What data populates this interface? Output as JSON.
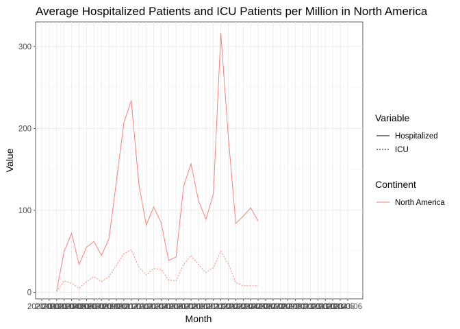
{
  "chart_data": {
    "type": "line",
    "title": "Average Hospitalized Patients and ICU Patients per Million in North America",
    "xlabel": "Month",
    "ylabel": "Value",
    "ylim": [
      -8,
      330
    ],
    "yticks": [
      0,
      100,
      200,
      300
    ],
    "x_tick_labels": [
      "2020-01",
      "2020-02",
      "2020-03",
      "2020-04",
      "2020-05",
      "2020-06",
      "2020-07",
      "2020-08",
      "2020-09",
      "2020-10",
      "2020-11",
      "2020-12",
      "2021-01",
      "2021-02",
      "2021-03",
      "2021-04",
      "2021-05",
      "2021-06",
      "2021-07",
      "2021-08",
      "2021-09",
      "2021-10",
      "2021-11",
      "2021-12",
      "2022-01",
      "2022-02",
      "2022-03",
      "2022-04",
      "2022-05",
      "2022-06",
      "2022-07",
      "2022-08",
      "2022-09",
      "2022-10",
      "2022-11",
      "2022-12",
      "2023-01",
      "2023-02",
      "2023-03",
      "2023-04",
      "2023-05",
      "2023-06"
    ],
    "x": [
      "2020-03",
      "2020-04",
      "2020-05",
      "2020-06",
      "2020-07",
      "2020-08",
      "2020-09",
      "2020-10",
      "2020-11",
      "2020-12",
      "2021-01",
      "2021-02",
      "2021-03",
      "2021-04",
      "2021-05",
      "2021-06",
      "2021-07",
      "2021-08",
      "2021-09",
      "2021-10",
      "2021-11",
      "2021-12",
      "2022-01",
      "2022-02",
      "2022-03",
      "2022-04",
      "2022-05",
      "2022-06",
      "2022-07"
    ],
    "series": [
      {
        "name": "Hospitalized",
        "linetype": "solid",
        "continent": "North America",
        "values": [
          2,
          50,
          72,
          34,
          55,
          62,
          45,
          65,
          135,
          207,
          234,
          133,
          82,
          104,
          85,
          39,
          43,
          129,
          157,
          112,
          89,
          120,
          316,
          190,
          84,
          93,
          103,
          87,
          null
        ]
      },
      {
        "name": "ICU",
        "linetype": "dotted",
        "continent": "North America",
        "values": [
          1,
          14,
          11,
          5,
          13,
          19,
          13,
          19,
          33,
          47,
          52,
          31,
          21,
          29,
          28,
          15,
          14,
          34,
          45,
          34,
          24,
          30,
          50,
          35,
          12,
          8,
          8,
          8,
          null
        ]
      }
    ],
    "color": "#F8766D",
    "grid": true,
    "legend_position": "right",
    "legend": {
      "variable_title": "Variable",
      "variable_items": [
        "Hospitalized",
        "ICU"
      ],
      "continent_title": "Continent",
      "continent_items": [
        "North America"
      ]
    }
  }
}
